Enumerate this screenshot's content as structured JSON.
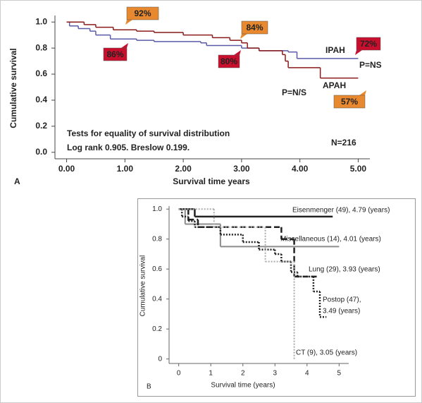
{
  "chart_data": [
    {
      "type": "line",
      "panel_label": "A",
      "xlabel": "Survival time years",
      "ylabel": "Cumulative survival",
      "xlim": [
        -0.2,
        5.2
      ],
      "ylim": [
        -0.05,
        1.05
      ],
      "xticks": [
        {
          "value": 0,
          "label": "0.00"
        },
        {
          "value": 1,
          "label": "1.00"
        },
        {
          "value": 2,
          "label": "2.00"
        },
        {
          "value": 3,
          "label": "3.00"
        },
        {
          "value": 4,
          "label": "4.00"
        },
        {
          "value": 5,
          "label": "5.00"
        }
      ],
      "yticks": [
        {
          "value": 0,
          "label": "0.0"
        },
        {
          "value": 0.2,
          "label": "0.2"
        },
        {
          "value": 0.4,
          "label": "0.4"
        },
        {
          "value": 0.6,
          "label": "0.6"
        },
        {
          "value": 0.8,
          "label": "0.8"
        },
        {
          "value": 1,
          "label": "1.0"
        }
      ],
      "series": [
        {
          "label": [
            "IPAH"
          ],
          "color": "#5a5aa8",
          "width": 1.5,
          "dash": "none",
          "x": [
            0,
            0.05,
            0.2,
            0.4,
            0.5,
            0.75,
            1.2,
            1.5,
            2.3,
            2.4,
            3.0,
            3.3,
            3.8,
            3.95,
            5.0
          ],
          "values": [
            1.0,
            0.97,
            0.95,
            0.93,
            0.9,
            0.87,
            0.86,
            0.85,
            0.84,
            0.82,
            0.8,
            0.78,
            0.77,
            0.72,
            0.72
          ]
        },
        {
          "label": [
            "APAH"
          ],
          "color": "#8b1a1a",
          "width": 1.5,
          "dash": "none",
          "x": [
            0,
            0.3,
            0.5,
            0.8,
            1.2,
            1.5,
            2.0,
            2.5,
            2.8,
            3.0,
            3.1,
            3.3,
            3.7,
            3.75,
            3.8,
            4.35,
            5.0
          ],
          "values": [
            1.0,
            0.98,
            0.96,
            0.94,
            0.93,
            0.92,
            0.9,
            0.88,
            0.86,
            0.84,
            0.8,
            0.78,
            0.75,
            0.7,
            0.65,
            0.57,
            0.57
          ]
        }
      ],
      "callouts": [
        {
          "text": "92%",
          "color": "#e8892f"
        },
        {
          "text": "86%",
          "color": "#c8102e"
        },
        {
          "text": "84%",
          "color": "#e8892f"
        },
        {
          "text": "80%",
          "color": "#c8102e"
        },
        {
          "text": "72%",
          "color": "#c8102e"
        },
        {
          "text": "57%",
          "color": "#e8892f"
        }
      ],
      "notes": [
        "Tests for equality of survival distribution",
        "Log rank 0.905. Breslow 0.199.",
        "N=216",
        "P=NS",
        "P=N/S"
      ]
    },
    {
      "type": "line",
      "panel_label": "B",
      "xlabel": "Survival time (years)",
      "ylabel": "Cumulative survival",
      "xlim": [
        -0.3,
        5.3
      ],
      "ylim": [
        -0.03,
        1.02
      ],
      "xticks": [
        0,
        1,
        2,
        3,
        4,
        5
      ],
      "yticks": [
        0,
        0.2,
        0.4,
        0.6,
        0.8,
        {
          "value": 1,
          "label": "1.0"
        }
      ],
      "series": [
        {
          "label": [
            "Eisenmenger (49), 4.79 (years)"
          ],
          "color": "#222222",
          "width": 2.5,
          "dash": "none",
          "x": [
            0,
            0.5,
            4.8
          ],
          "values": [
            1.0,
            0.95,
            0.95
          ]
        },
        {
          "label": [
            "Miscellaneous (14), 4.01 (years)"
          ],
          "color": "#8c8c8c",
          "width": 2,
          "dash": "none",
          "x": [
            0,
            0.2,
            1.3,
            5.0
          ],
          "values": [
            1.0,
            0.9,
            0.75,
            0.75
          ]
        },
        {
          "label": [
            "Lung (29), 3.93 (years)"
          ],
          "color": "#222222",
          "width": 2.5,
          "dash": "8,4",
          "x": [
            0,
            0.3,
            0.6,
            3.2,
            3.6,
            4.3
          ],
          "values": [
            1.0,
            0.93,
            0.88,
            0.8,
            0.55,
            0.55
          ]
        },
        {
          "label": [
            "Postop (47),",
            "3.49 (years)"
          ],
          "color": "#222222",
          "width": 2.5,
          "dash": "2,2",
          "x": [
            0,
            0.1,
            0.3,
            0.5,
            1.3,
            2.0,
            2.5,
            3.0,
            3.2,
            3.5,
            3.7,
            4.2,
            4.4,
            4.6
          ],
          "values": [
            1.0,
            0.95,
            0.92,
            0.88,
            0.83,
            0.78,
            0.73,
            0.7,
            0.65,
            0.58,
            0.55,
            0.45,
            0.28,
            0.28
          ]
        },
        {
          "label": [
            "CT (9), 3.05 (years)"
          ],
          "color": "#aaaaaa",
          "width": 2,
          "dash": "2,2",
          "x": [
            0,
            1.1,
            2.7,
            3.6
          ],
          "values": [
            1.0,
            0.88,
            0.65,
            0.0
          ]
        }
      ]
    }
  ]
}
